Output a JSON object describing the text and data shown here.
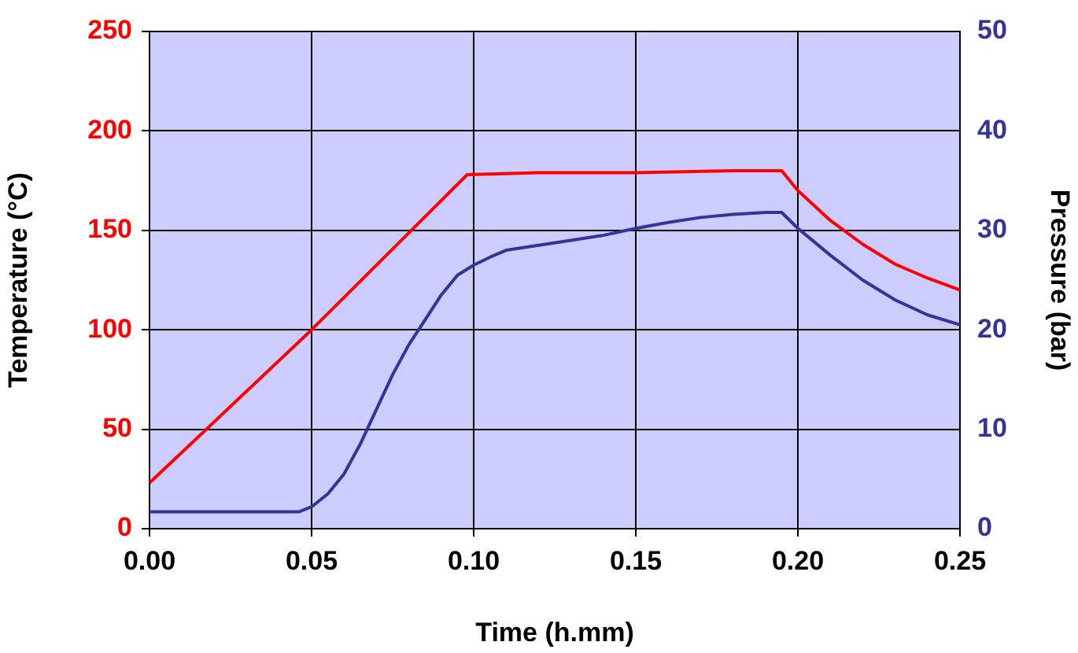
{
  "chart_data": {
    "type": "line",
    "xlabel": "Time (h.mm)",
    "ylabel": "Temperature (°C)",
    "y2label": "Pressure (bar)",
    "xlim": [
      0,
      0.25
    ],
    "xticks": [
      {
        "value": 0,
        "label": "0.00"
      },
      {
        "value": 0.05,
        "label": "0.05"
      },
      {
        "value": 0.1,
        "label": "0.10"
      },
      {
        "value": 0.15,
        "label": "0.15"
      },
      {
        "value": 0.2,
        "label": "0.20"
      },
      {
        "value": 0.25,
        "label": "0.25"
      }
    ],
    "ylim": [
      0,
      250
    ],
    "yticks": [
      0,
      50,
      100,
      150,
      200,
      250
    ],
    "y2lim": [
      0,
      50
    ],
    "y2ticks": [
      0,
      10,
      20,
      30,
      40,
      50
    ],
    "grid": true,
    "marker": "none",
    "line_style": "solid",
    "series": [
      {
        "color": "#ff0000",
        "x": [
          0,
          0.05,
          0.098,
          0.12,
          0.15,
          0.18,
          0.195,
          0.2,
          0.21,
          0.22,
          0.23,
          0.24,
          0.25
        ],
        "values": [
          23,
          100,
          178,
          179,
          179,
          180,
          180,
          170,
          155,
          143,
          133,
          126,
          120
        ]
      },
      {
        "color": "#333399",
        "axis": "y2",
        "x": [
          0,
          0.046,
          0.05,
          0.055,
          0.06,
          0.065,
          0.07,
          0.075,
          0.08,
          0.085,
          0.09,
          0.095,
          0.1,
          0.105,
          0.11,
          0.12,
          0.13,
          0.14,
          0.15,
          0.16,
          0.17,
          0.18,
          0.19,
          0.195,
          0.2,
          0.21,
          0.22,
          0.23,
          0.24,
          0.25
        ],
        "values": [
          1.7,
          1.7,
          2.2,
          3.5,
          5.5,
          8.5,
          12,
          15.5,
          18.5,
          21,
          23.5,
          25.5,
          26.5,
          27.3,
          28,
          28.5,
          29,
          29.5,
          30.2,
          30.8,
          31.3,
          31.6,
          31.8,
          31.8,
          30.2,
          27.5,
          25,
          23,
          21.5,
          20.5
        ]
      }
    ]
  }
}
